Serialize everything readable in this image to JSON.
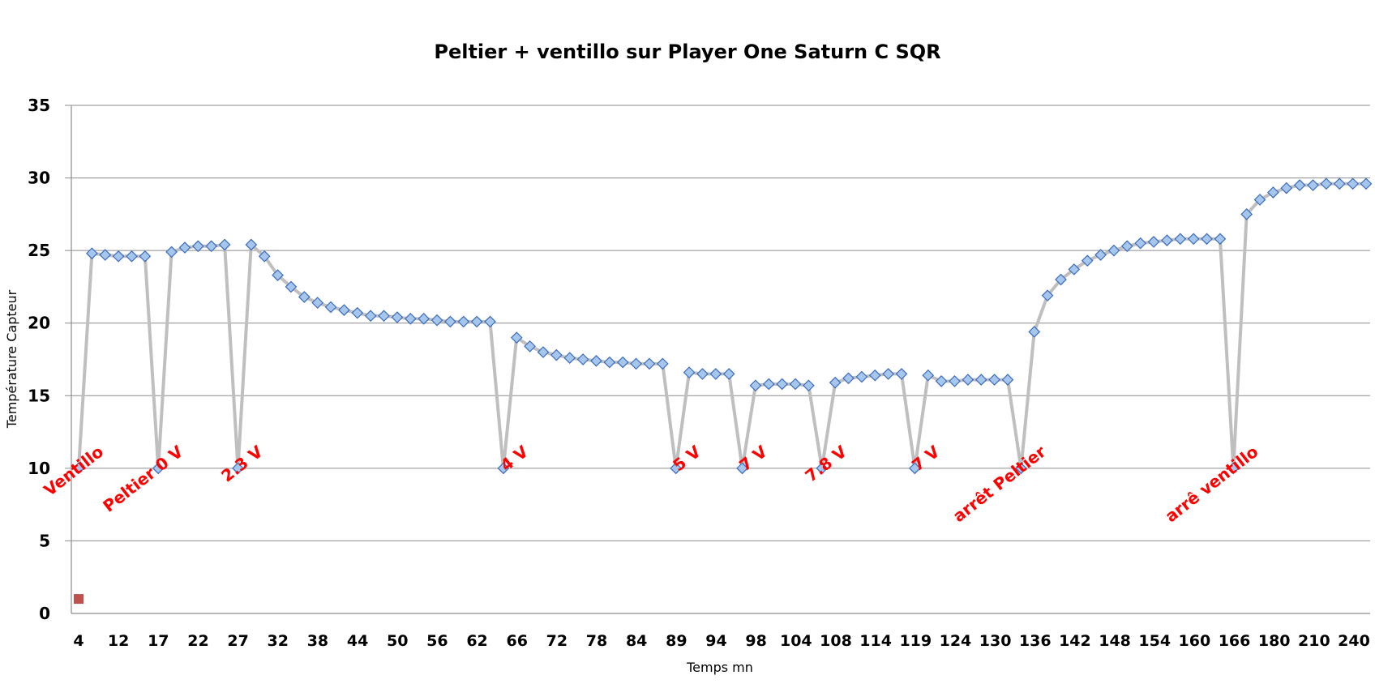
{
  "chart_data": {
    "type": "line",
    "title": "Peltier + ventillo sur Player One Saturn C SQR",
    "xlabel": "Temps mn",
    "ylabel": "Température Capteur",
    "ylim": [
      0,
      35
    ],
    "yticks": [
      0,
      5,
      10,
      15,
      20,
      25,
      30,
      35
    ],
    "grid": "horizontal",
    "legend": "none",
    "colors": {
      "line": "#bfbfbf",
      "marker_fill": "#a6c6ec",
      "marker_edge": "#3a6bbf",
      "annotation": "#ff0000",
      "extra_marker": "#c0504d",
      "grid": "#8c8c8c"
    },
    "x_tick_labels": [
      "4",
      "12",
      "17",
      "22",
      "27",
      "32",
      "38",
      "44",
      "50",
      "56",
      "62",
      "66",
      "72",
      "78",
      "84",
      "89",
      "94",
      "98",
      "104",
      "108",
      "114",
      "119",
      "124",
      "130",
      "136",
      "142",
      "148",
      "154",
      "160",
      "166",
      "180",
      "210",
      "240"
    ],
    "series": [
      {
        "values": [
          10,
          24.8,
          24.7,
          24.6,
          24.6,
          24.6,
          10,
          24.9,
          25.2,
          25.3,
          25.3,
          25.4,
          10,
          25.4,
          24.6,
          23.3,
          22.5,
          21.8,
          21.4,
          21.1,
          20.9,
          20.7,
          20.5,
          20.5,
          20.4,
          20.3,
          20.3,
          20.2,
          20.1,
          20.1,
          20.1,
          20.1,
          10,
          19,
          18.4,
          18,
          17.8,
          17.6,
          17.5,
          17.4,
          17.3,
          17.3,
          17.2,
          17.2,
          17.2,
          10,
          16.6,
          16.5,
          16.5,
          16.5,
          10,
          15.7,
          15.8,
          15.8,
          15.8,
          15.7,
          10,
          15.9,
          16.2,
          16.3,
          16.4,
          16.5,
          16.5,
          10,
          16.4,
          16,
          16,
          16.1,
          16.1,
          16.1,
          16.1,
          10,
          19.4,
          21.9,
          23,
          23.7,
          24.3,
          24.7,
          25,
          25.3,
          25.5,
          25.6,
          25.7,
          25.8,
          25.8,
          25.8,
          25.8,
          10,
          27.5,
          28.5,
          29,
          29.3,
          29.5,
          29.5,
          29.6,
          29.6,
          29.6,
          29.6
        ]
      }
    ],
    "annotations": [
      {
        "text": "Ventillo",
        "index": 0
      },
      {
        "text": "Peltier 0 V",
        "index": 6
      },
      {
        "text": "2.3 V",
        "index": 12
      },
      {
        "text": "4 V",
        "index": 32
      },
      {
        "text": "5 V",
        "index": 45
      },
      {
        "text": "7 V",
        "index": 50
      },
      {
        "text": "7.8 V",
        "index": 56
      },
      {
        "text": "7 V",
        "index": 63
      },
      {
        "text": "arrêt Peltier",
        "index": 71
      },
      {
        "text": "arrê ventillo",
        "index": 87
      }
    ],
    "extra_points": [
      {
        "index": 0,
        "y": 1
      }
    ]
  }
}
